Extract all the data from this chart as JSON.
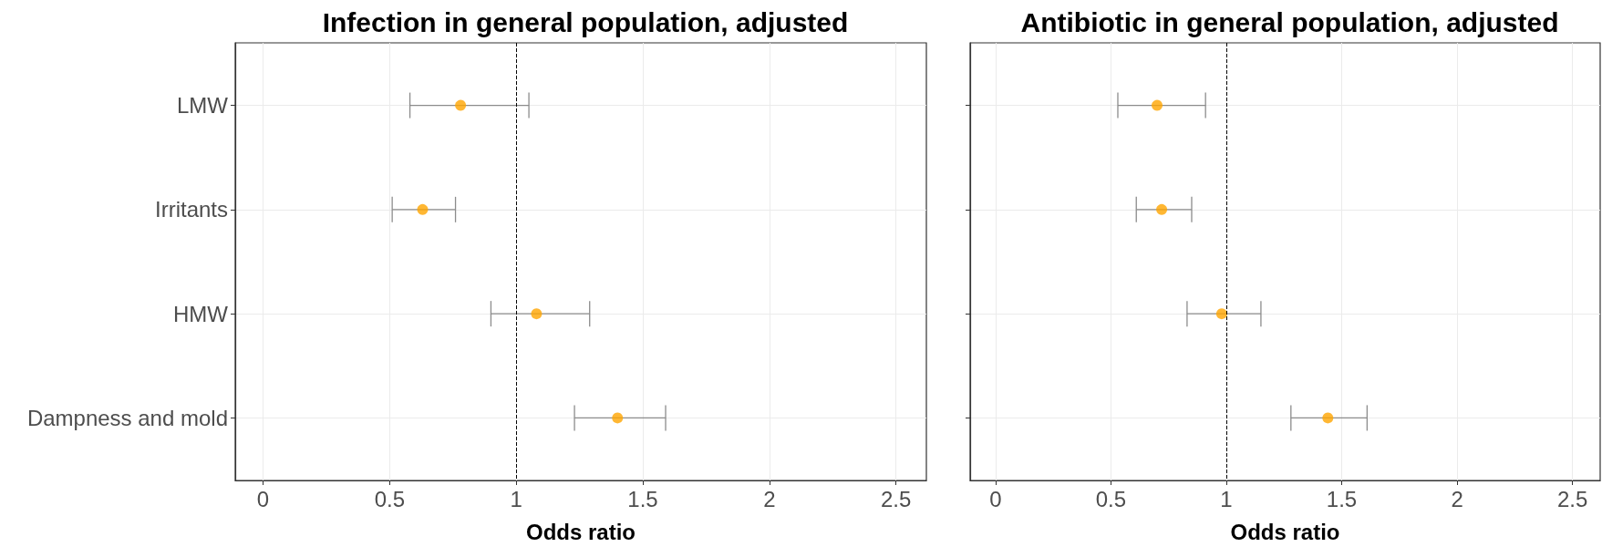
{
  "chart_data": [
    {
      "type": "scatter",
      "title": "Infection in general population, adjusted",
      "xlabel": "Odds ratio",
      "orientation": "horizontal",
      "categories": [
        "LMW",
        "Irritants",
        "HMW",
        "Dampness and mold"
      ],
      "series": [
        {
          "color": "#ffa500",
          "values": [
            0.78,
            0.63,
            1.08,
            1.4
          ],
          "errors": [
            [
              0.58,
              1.05
            ],
            [
              0.51,
              0.76
            ],
            [
              0.9,
              1.29
            ],
            [
              1.23,
              1.59
            ]
          ]
        }
      ],
      "xlim": [
        -0.11,
        2.62
      ],
      "xticks": [
        0,
        0.5,
        1,
        1.5,
        2,
        2.5
      ],
      "grid": true,
      "marker": "circle",
      "ref_lines": [
        {
          "axis": "x",
          "value": 1,
          "color": "#000000",
          "line_style": "dashed"
        }
      ]
    },
    {
      "type": "scatter",
      "title": "Antibiotic in general population, adjusted",
      "xlabel": "Odds ratio",
      "orientation": "horizontal",
      "categories": [
        null,
        null,
        null,
        null
      ],
      "series": [
        {
          "color": "#ffa500",
          "values": [
            0.7,
            0.72,
            0.98,
            1.44
          ],
          "errors": [
            [
              0.53,
              0.91
            ],
            [
              0.61,
              0.85
            ],
            [
              0.83,
              1.15
            ],
            [
              1.28,
              1.61
            ]
          ]
        }
      ],
      "xlim": [
        -0.11,
        2.62
      ],
      "xticks": [
        0,
        0.5,
        1,
        1.5,
        2,
        2.5
      ],
      "grid": true,
      "marker": "circle",
      "ref_lines": [
        {
          "axis": "x",
          "value": 1,
          "color": "#000000",
          "line_style": "dashed"
        }
      ]
    }
  ]
}
